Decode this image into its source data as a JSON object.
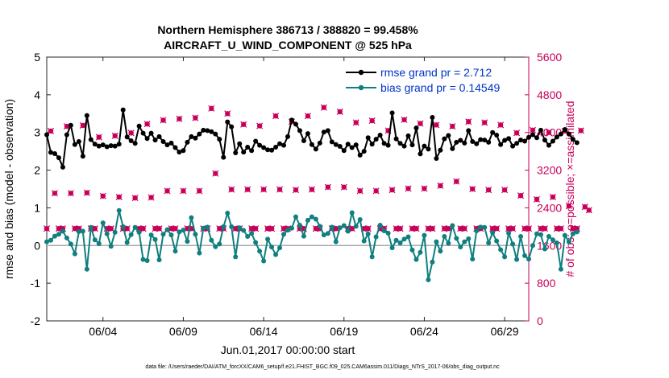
{
  "chart_data": {
    "type": "line",
    "title_line1": "Northern Hemisphere 386713 / 388820 = 99.458%",
    "title_line2": "AIRCRAFT_U_WIND_COMPONENT @ 525 hPa",
    "ylabel_left": "rmse and bias (model - observation)",
    "ylabel_right": "# of obs: o=possible; ×=assimilated",
    "xlabel": "Jun.01,2017 00:00:00 start",
    "footer": "data file: /Users/raeder/DAI/ATM_forcXX/CAM6_setup/f.e21.FHIST_BGC.f09_025.CAM6assim.011/Diags_NTrS_2017-06/obs_diag_output.nc",
    "grid": false,
    "legend_position": "top-right",
    "x_range_days": [
      0.5,
      30.5
    ],
    "ylim_left": [
      -2,
      5
    ],
    "yticks_left": [
      "-2",
      "-1",
      "0",
      "1",
      "2",
      "3",
      "4",
      "5"
    ],
    "ylim_right": [
      0,
      5600
    ],
    "yticks_right": [
      "0",
      "800",
      "1600",
      "2400",
      "3200",
      "4000",
      "4800",
      "5600"
    ],
    "xticks": [
      {
        "day": 4,
        "label": "06/04"
      },
      {
        "day": 9,
        "label": "06/09"
      },
      {
        "day": 14,
        "label": "06/14"
      },
      {
        "day": 19,
        "label": "06/19"
      },
      {
        "day": 24,
        "label": "06/24"
      },
      {
        "day": 29,
        "label": "06/29"
      }
    ],
    "legend": [
      {
        "label": "rmse grand pr = 2.712",
        "color": "#000000"
      },
      {
        "label": "bias grand pr = 0.14549",
        "color": "#0f7f7f"
      }
    ],
    "colors": {
      "rmse": "#000000",
      "bias": "#0f7f7f",
      "obs": "#c8005a",
      "zero_line": "#aaaaaa"
    },
    "series": [
      {
        "name": "rmse grand pr = 2.712",
        "start_day": 0.5,
        "step_days": 0.25,
        "values": [
          2.94,
          2.47,
          2.44,
          2.33,
          2.08,
          2.94,
          3.19,
          2.68,
          2.76,
          2.37,
          3.45,
          2.81,
          2.69,
          2.64,
          2.67,
          2.62,
          2.65,
          2.64,
          2.69,
          3.6,
          2.88,
          2.78,
          2.71,
          3.17,
          2.98,
          2.84,
          2.98,
          2.8,
          2.89,
          2.76,
          2.67,
          2.72,
          2.6,
          2.48,
          2.52,
          2.74,
          2.89,
          2.85,
          2.96,
          3.06,
          3.05,
          3.02,
          2.96,
          2.82,
          2.34,
          3.28,
          3.15,
          2.46,
          2.7,
          2.48,
          2.61,
          2.52,
          2.77,
          2.66,
          2.6,
          2.54,
          2.53,
          2.61,
          2.7,
          2.66,
          2.89,
          3.33,
          3.22,
          3.05,
          2.78,
          2.97,
          2.68,
          2.56,
          2.72,
          3.01,
          3.05,
          2.75,
          2.68,
          2.63,
          2.52,
          2.69,
          2.6,
          2.67,
          2.4,
          2.5,
          2.86,
          2.69,
          2.82,
          2.93,
          2.71,
          2.66,
          3.52,
          2.83,
          2.71,
          2.64,
          2.91,
          2.67,
          3.12,
          2.43,
          2.64,
          2.56,
          3.4,
          2.31,
          2.53,
          2.83,
          2.92,
          2.57,
          2.74,
          2.79,
          2.72,
          3.05,
          2.76,
          2.7,
          2.81,
          2.8,
          2.74,
          3.0,
          2.93,
          2.68,
          2.79,
          2.84,
          2.64,
          2.71,
          2.8,
          2.77,
          2.87,
          2.94,
          2.86,
          3.06,
          2.8,
          2.66,
          2.77,
          2.88,
          2.96,
          3.08,
          2.96,
          2.82,
          2.73
        ]
      },
      {
        "name": "bias grand pr = 0.14549",
        "start_day": 0.5,
        "step_days": 0.25,
        "values": [
          0.1,
          0.14,
          0.25,
          0.3,
          0.38,
          0.2,
          0.04,
          -0.22,
          0.37,
          0.38,
          -0.63,
          0.48,
          0.15,
          0.05,
          0.6,
          0.31,
          -0.02,
          0.35,
          0.93,
          0.5,
          0.08,
          0.29,
          0.48,
          0.35,
          -0.37,
          -0.4,
          0.28,
          0.16,
          -0.38,
          0.3,
          0.42,
          0.28,
          -0.15,
          0.36,
          0.41,
          0.11,
          0.74,
          0.3,
          -0.2,
          0.46,
          0.49,
          0.14,
          -0.03,
          0.04,
          0.5,
          0.86,
          0.5,
          -0.3,
          0.47,
          0.4,
          0.24,
          0.32,
          0.08,
          -0.15,
          -0.41,
          0.17,
          -0.04,
          -0.24,
          -0.06,
          0.3,
          0.41,
          0.46,
          0.76,
          0.54,
          0.25,
          0.67,
          0.76,
          0.7,
          0.51,
          0.28,
          0.32,
          0.49,
          0.1,
          0.47,
          0.53,
          0.38,
          0.87,
          0.51,
          0.69,
          0.12,
          0.31,
          -0.3,
          0.23,
          0.54,
          0.39,
          0.33,
          -0.06,
          0.14,
          0.07,
          0.17,
          0.23,
          -0.12,
          -0.37,
          -0.18,
          0.27,
          -0.91,
          -0.44,
          0.1,
          -0.15,
          0.24,
          0.06,
          0.53,
          0.19,
          -0.04,
          0.1,
          0.18,
          -0.36,
          0.39,
          0.49,
          0.48,
          0.07,
          0.34,
          0.12,
          -0.11,
          -0.3,
          0.33,
          0.04,
          -0.37,
          0.24,
          -0.27,
          -0.36,
          0.0,
          0.31,
          0.29,
          -0.09,
          0.24,
          0.15,
          0.07,
          -0.63,
          0.27,
          0.1,
          0.31,
          0.36
        ]
      }
    ],
    "obs_counts": {
      "name": "# of obs",
      "start_day": 0.5,
      "step_days": 0.25,
      "values": [
        1960,
        4030,
        2710,
        1960,
        1960,
        4130,
        2710,
        1960,
        1960,
        4150,
        2720,
        1960,
        1960,
        3900,
        2650,
        1960,
        1960,
        3930,
        2630,
        1960,
        1960,
        3990,
        2610,
        1960,
        1960,
        4180,
        2620,
        1960,
        1960,
        4260,
        2760,
        1960,
        1960,
        4290,
        2760,
        1960,
        1960,
        4310,
        2760,
        1960,
        1960,
        4510,
        3130,
        1960,
        1960,
        4400,
        2790,
        1960,
        1960,
        4170,
        2790,
        1960,
        1960,
        4140,
        2790,
        1960,
        1960,
        4350,
        2790,
        1960,
        1960,
        4230,
        2780,
        1960,
        1960,
        4350,
        2790,
        1960,
        1960,
        4530,
        2840,
        1960,
        1960,
        4440,
        2840,
        1960,
        1960,
        4210,
        2760,
        1960,
        1960,
        4250,
        2760,
        1960,
        1960,
        4040,
        2780,
        1960,
        1960,
        4270,
        2810,
        1960,
        1960,
        4190,
        2810,
        1960,
        1960,
        4160,
        2870,
        1960,
        1960,
        4130,
        2960,
        1960,
        1960,
        4230,
        2800,
        1960,
        1960,
        4210,
        2780,
        1960,
        1960,
        4160,
        2780,
        1960,
        1960,
        3990,
        2660,
        1960,
        1960,
        4050,
        2580,
        1960,
        1960,
        4000,
        2630,
        1960,
        1960,
        4030,
        2440,
        1960,
        1960,
        4040,
        2420,
        2350
      ]
    }
  }
}
